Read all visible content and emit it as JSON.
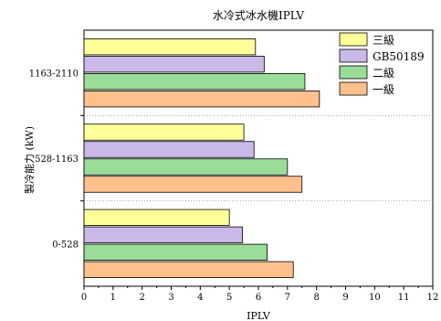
{
  "chart_data": {
    "type": "bar",
    "orientation": "horizontal",
    "title": "水冷式冰水機IPLV",
    "xlabel": "IPLV",
    "ylabel": "製冷能力 (kW)",
    "xlim": [
      0,
      12
    ],
    "x_ticks": [
      0,
      1,
      2,
      3,
      4,
      5,
      6,
      7,
      8,
      9,
      10,
      11,
      12
    ],
    "grid": "dotted separators between categories",
    "legend_position": "top-right",
    "categories": [
      "0-528",
      "528-1163",
      "1163-2110"
    ],
    "series": [
      {
        "name": "三級",
        "color": "#ffff99",
        "values": [
          5.0,
          5.5,
          5.9
        ]
      },
      {
        "name": "GB50189",
        "color": "#c9b8e8",
        "values": [
          5.45,
          5.85,
          6.2
        ]
      },
      {
        "name": "二級",
        "color": "#99dd99",
        "values": [
          6.3,
          7.0,
          7.6
        ]
      },
      {
        "name": "一級",
        "color": "#ffc08c",
        "values": [
          7.2,
          7.5,
          8.1
        ]
      }
    ]
  }
}
